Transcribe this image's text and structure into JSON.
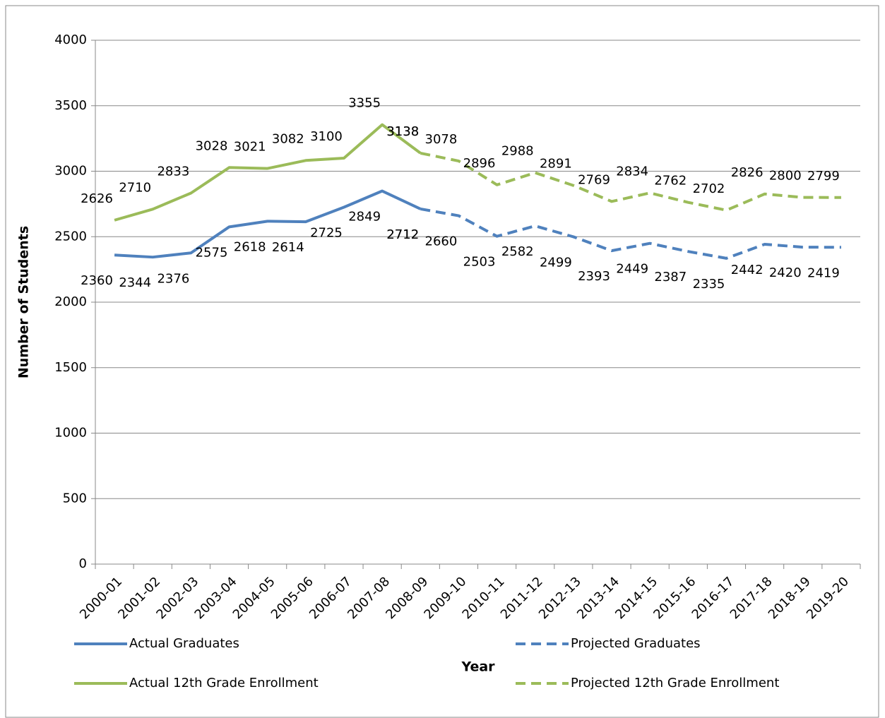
{
  "chart_data": {
    "type": "line",
    "x_label": "Year",
    "y_label": "Number of Students",
    "categories": [
      "2000-01",
      "2001-02",
      "2002-03",
      "2003-04",
      "2004-05",
      "2005-06",
      "2006-07",
      "2007-08",
      "2008-09",
      "2009-10",
      "2010-11",
      "2011-12",
      "2012-13",
      "2013-14",
      "2014-15",
      "2015-16",
      "2016-17",
      "2017-18",
      "2018-19",
      "2019-20"
    ],
    "series": [
      {
        "name": "Actual Graduates",
        "color": "#4f81bd",
        "dashed": false,
        "label_side": "below",
        "values": [
          2360,
          2344,
          2376,
          2575,
          2618,
          2614,
          2725,
          2849,
          2712,
          null,
          null,
          null,
          null,
          null,
          null,
          null,
          null,
          null,
          null,
          null
        ]
      },
      {
        "name": "Projected Graduates",
        "color": "#4f81bd",
        "dashed": true,
        "label_side": "below",
        "values": [
          null,
          null,
          null,
          null,
          null,
          null,
          null,
          null,
          2712,
          2660,
          2503,
          2582,
          2499,
          2393,
          2449,
          2387,
          2335,
          2442,
          2420,
          2419
        ]
      },
      {
        "name": "Actual 12th Grade Enrollment",
        "color": "#9bbb59",
        "dashed": false,
        "label_side": "above",
        "values": [
          2626,
          2710,
          2833,
          3028,
          3021,
          3082,
          3100,
          3355,
          3138,
          null,
          null,
          null,
          null,
          null,
          null,
          null,
          null,
          null,
          null,
          null
        ]
      },
      {
        "name": "Projected 12th Grade Enrollment",
        "color": "#9bbb59",
        "dashed": true,
        "label_side": "above",
        "values": [
          null,
          null,
          null,
          null,
          null,
          null,
          null,
          null,
          3138,
          3078,
          2896,
          2988,
          2891,
          2769,
          2834,
          2762,
          2702,
          2826,
          2800,
          2799
        ]
      }
    ],
    "ylim": [
      0,
      4000
    ],
    "yticks": [
      0,
      500,
      1000,
      1500,
      2000,
      2500,
      3000,
      3500,
      4000
    ],
    "grid": true,
    "legend": "bottom"
  }
}
